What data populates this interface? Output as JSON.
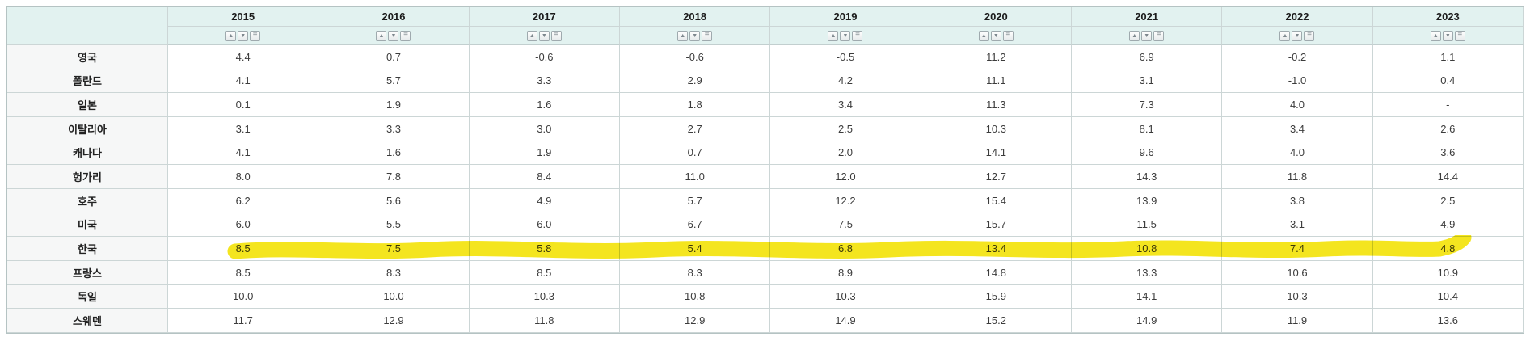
{
  "table": {
    "columns": [
      "2015",
      "2016",
      "2017",
      "2018",
      "2019",
      "2020",
      "2021",
      "2022",
      "2023"
    ],
    "sort_icons": {
      "asc": "▲",
      "desc": "▼",
      "menu": "≡"
    },
    "rows": [
      {
        "label": "영국",
        "highlighted": false,
        "values": [
          "4.4",
          "0.7",
          "-0.6",
          "-0.6",
          "-0.5",
          "11.2",
          "6.9",
          "-0.2",
          "1.1"
        ]
      },
      {
        "label": "폴란드",
        "highlighted": false,
        "values": [
          "4.1",
          "5.7",
          "3.3",
          "2.9",
          "4.2",
          "11.1",
          "3.1",
          "-1.0",
          "0.4"
        ]
      },
      {
        "label": "일본",
        "highlighted": false,
        "values": [
          "0.1",
          "1.9",
          "1.6",
          "1.8",
          "3.4",
          "11.3",
          "7.3",
          "4.0",
          "-"
        ]
      },
      {
        "label": "이탈리아",
        "highlighted": false,
        "values": [
          "3.1",
          "3.3",
          "3.0",
          "2.7",
          "2.5",
          "10.3",
          "8.1",
          "3.4",
          "2.6"
        ]
      },
      {
        "label": "캐나다",
        "highlighted": false,
        "values": [
          "4.1",
          "1.6",
          "1.9",
          "0.7",
          "2.0",
          "14.1",
          "9.6",
          "4.0",
          "3.6"
        ]
      },
      {
        "label": "헝가리",
        "highlighted": false,
        "values": [
          "8.0",
          "7.8",
          "8.4",
          "11.0",
          "12.0",
          "12.7",
          "14.3",
          "11.8",
          "14.4"
        ]
      },
      {
        "label": "호주",
        "highlighted": false,
        "values": [
          "6.2",
          "5.6",
          "4.9",
          "5.7",
          "12.2",
          "15.4",
          "13.9",
          "3.8",
          "2.5"
        ]
      },
      {
        "label": "미국",
        "highlighted": false,
        "values": [
          "6.0",
          "5.5",
          "6.0",
          "6.7",
          "7.5",
          "15.7",
          "11.5",
          "3.1",
          "4.9"
        ]
      },
      {
        "label": "한국",
        "highlighted": true,
        "values": [
          "8.5",
          "7.5",
          "5.8",
          "5.4",
          "6.8",
          "13.4",
          "10.8",
          "7.4",
          "4.8"
        ]
      },
      {
        "label": "프랑스",
        "highlighted": false,
        "values": [
          "8.5",
          "8.3",
          "8.5",
          "8.3",
          "8.9",
          "14.8",
          "13.3",
          "10.6",
          "10.9"
        ]
      },
      {
        "label": "독일",
        "highlighted": false,
        "values": [
          "10.0",
          "10.0",
          "10.3",
          "10.8",
          "10.3",
          "15.9",
          "14.1",
          "10.3",
          "10.4"
        ]
      },
      {
        "label": "스웨덴",
        "highlighted": false,
        "values": [
          "11.7",
          "12.9",
          "11.8",
          "12.9",
          "14.9",
          "15.2",
          "14.9",
          "11.9",
          "13.6"
        ]
      }
    ],
    "colors": {
      "header_bg": "#e2f2f0",
      "label_bg": "#f6f7f7",
      "border": "#ccd6d6",
      "highlight": "#f3e306"
    }
  }
}
